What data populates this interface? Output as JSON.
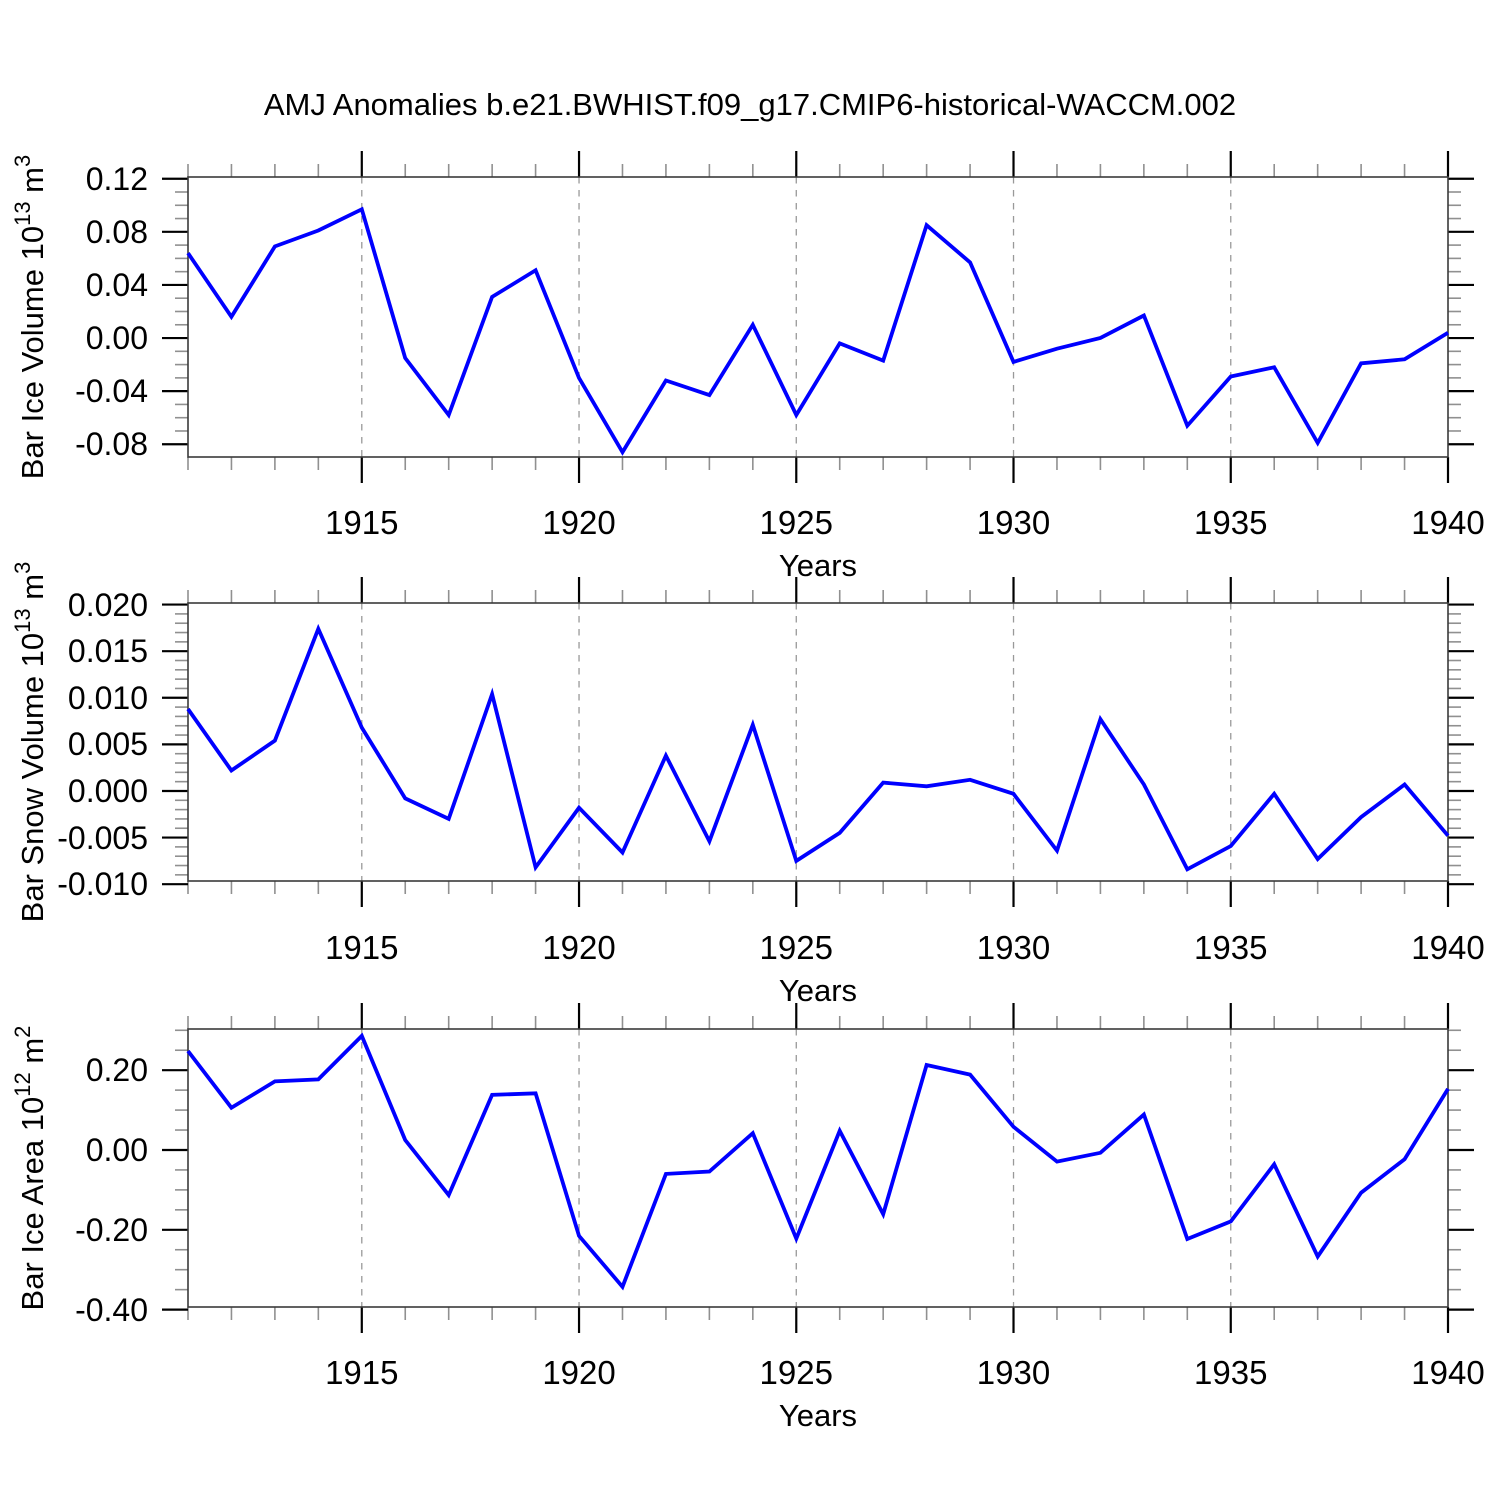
{
  "chart_data": {
    "type": "line",
    "title": "AMJ Anomalies b.e21.BWHIST.f09_g17.CMIP6-historical-WACCM.002",
    "xlabel": "Years",
    "legend": "none",
    "grid": "vertical-dashed-at-major-years",
    "line_color": "#0000ff",
    "x": [
      1911,
      1912,
      1913,
      1914,
      1915,
      1916,
      1917,
      1918,
      1919,
      1920,
      1921,
      1922,
      1923,
      1924,
      1925,
      1926,
      1927,
      1928,
      1929,
      1930,
      1931,
      1932,
      1933,
      1934,
      1935,
      1936,
      1937,
      1938,
      1939,
      1940
    ],
    "xlim": [
      1911,
      1940
    ],
    "x_major_ticks": [
      1915,
      1920,
      1925,
      1930,
      1935,
      1940
    ],
    "x_major_tick_labels": [
      "1915",
      "1920",
      "1925",
      "1930",
      "1935",
      "1940"
    ],
    "x_minor_step_years": 1,
    "grid_years": [
      1915,
      1920,
      1925,
      1930,
      1935
    ],
    "panels": [
      {
        "id": "ice-volume",
        "ylabel_text": "Bar Ice Volume 10^13 m^3",
        "ylabel_parts": [
          {
            "t": "Bar Ice Volume 10"
          },
          {
            "t": "13",
            "sup": true
          },
          {
            "t": " m"
          },
          {
            "t": "3",
            "sup": true
          }
        ],
        "ylim": [
          -0.0896,
          0.1213
        ],
        "yticks": [
          0.12,
          0.08,
          0.04,
          0.0,
          -0.04,
          -0.08
        ],
        "ytick_labels": [
          "0.12",
          "0.08",
          "0.04",
          "0.00",
          "-0.04",
          "-0.08"
        ],
        "yminor_step": 0.01,
        "values": [
          0.064,
          0.016,
          0.069,
          0.081,
          0.097,
          -0.015,
          -0.058,
          0.031,
          0.051,
          -0.03,
          -0.086,
          -0.032,
          -0.043,
          0.01,
          -0.058,
          -0.004,
          -0.017,
          0.085,
          0.057,
          -0.018,
          -0.008,
          0.0,
          0.017,
          -0.066,
          -0.029,
          -0.022,
          -0.079,
          -0.019,
          -0.016,
          0.004
        ]
      },
      {
        "id": "snow-volume",
        "ylabel_text": "Bar Snow Volume 10^13 m^3",
        "ylabel_parts": [
          {
            "t": "Bar Snow Volume 10"
          },
          {
            "t": "13",
            "sup": true
          },
          {
            "t": " m"
          },
          {
            "t": "3",
            "sup": true
          }
        ],
        "ylim": [
          -0.00966,
          0.02017
        ],
        "yticks": [
          0.02,
          0.015,
          0.01,
          0.005,
          0.0,
          -0.005,
          -0.01
        ],
        "ytick_labels": [
          "0.020",
          "0.015",
          "0.010",
          "0.005",
          "0.000",
          "-0.005",
          "-0.010"
        ],
        "yminor_step": 0.001,
        "values": [
          0.0088,
          0.0022,
          0.0054,
          0.0174,
          0.0068,
          -0.0008,
          -0.003,
          0.0104,
          -0.0082,
          -0.0018,
          -0.0066,
          0.0038,
          -0.0054,
          0.0071,
          -0.0075,
          -0.0045,
          0.0009,
          0.0005,
          0.0012,
          -0.0003,
          -0.0064,
          0.0077,
          0.0007,
          -0.0084,
          -0.0059,
          -0.0003,
          -0.0073,
          -0.0028,
          0.0007,
          -0.0048
        ]
      },
      {
        "id": "ice-area",
        "ylabel_text": "Bar Ice Area 10^12 m^2",
        "ylabel_parts": [
          {
            "t": "Bar Ice Area 10"
          },
          {
            "t": "12",
            "sup": true
          },
          {
            "t": " m"
          },
          {
            "t": "2",
            "sup": true
          }
        ],
        "ylim": [
          -0.3935,
          0.3032
        ],
        "yticks": [
          0.2,
          0.0,
          -0.2,
          -0.4
        ],
        "ytick_labels": [
          "0.20",
          "0.00",
          "-0.20",
          "-0.40"
        ],
        "yminor_step": 0.05,
        "values": [
          0.248,
          0.106,
          0.172,
          0.177,
          0.286,
          0.025,
          -0.113,
          0.138,
          0.142,
          -0.215,
          -0.343,
          -0.06,
          -0.054,
          0.042,
          -0.222,
          0.048,
          -0.161,
          0.213,
          0.189,
          0.058,
          -0.029,
          -0.007,
          0.089,
          -0.223,
          -0.179,
          -0.036,
          -0.267,
          -0.107,
          -0.023,
          0.153
        ]
      }
    ],
    "colors": {
      "line": "#0000ff",
      "frame": "#3a3a3a",
      "major_tick": "#000000",
      "minor_tick": "#909090",
      "gridline": "#999999",
      "background": "#ffffff",
      "text": "#000000"
    }
  }
}
